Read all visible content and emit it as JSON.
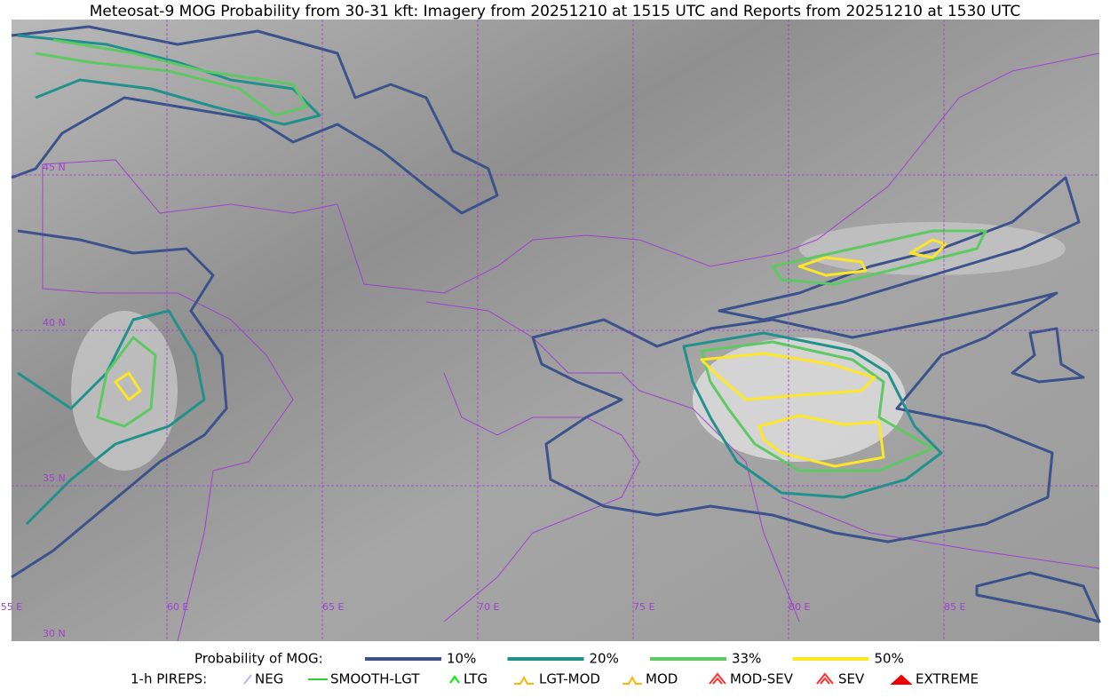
{
  "title": "Meteosat-9 MOG Probability from 30-31 kft: Imagery from 20251210 at 1515 UTC and Reports from 20251210 at 1530 UTC",
  "map": {
    "lat_labels": [
      "45 N",
      "40 N",
      "35 N",
      "30 N"
    ],
    "lon_labels": [
      "55 E",
      "60 E",
      "65 E",
      "70 E",
      "75 E",
      "80 E",
      "85 E"
    ]
  },
  "legend": {
    "probability_title": "Probability of MOG:",
    "probability_items": [
      {
        "label": "10%",
        "color": "#3b528b"
      },
      {
        "label": "20%",
        "color": "#21918c"
      },
      {
        "label": "33%",
        "color": "#5ec962"
      },
      {
        "label": "50%",
        "color": "#fde725"
      }
    ],
    "pirep_title": "1-h PIREPS:",
    "pirep_items": [
      {
        "label": "NEG",
        "color": "#b4b4ff"
      },
      {
        "label": "SMOOTH-LGT",
        "color": "#32cd32"
      },
      {
        "label": "LTG",
        "color": "#00ee00"
      },
      {
        "label": "LGT-MOD",
        "color": "#ffb400"
      },
      {
        "label": "MOD",
        "color": "#ffb400"
      },
      {
        "label": "MOD-SEV",
        "color": "#ff3030"
      },
      {
        "label": "SEV",
        "color": "#ff3030"
      },
      {
        "label": "EXTREME",
        "color": "#ee0000"
      }
    ]
  }
}
